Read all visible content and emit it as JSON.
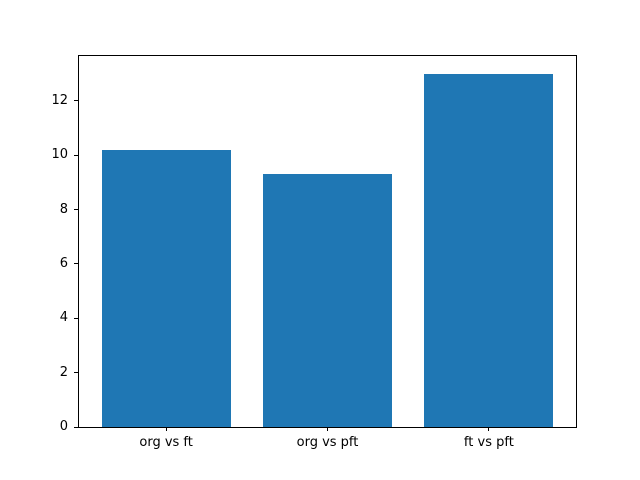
{
  "chart_data": {
    "type": "bar",
    "title": "",
    "xlabel": "",
    "ylabel": "",
    "categories": [
      "org vs ft",
      "org vs pft",
      "ft vs pft"
    ],
    "values": [
      10.2,
      9.3,
      13.0
    ],
    "yticks": [
      0,
      2,
      4,
      6,
      8,
      10,
      12
    ],
    "ylim": [
      0,
      13.65
    ],
    "xlim": [
      -0.54,
      2.54
    ],
    "bar_width_fraction": 0.8,
    "bar_color": "#1f77b4",
    "spine_color": "#000000",
    "background_color": "#ffffff",
    "grid": false,
    "legend": null
  }
}
